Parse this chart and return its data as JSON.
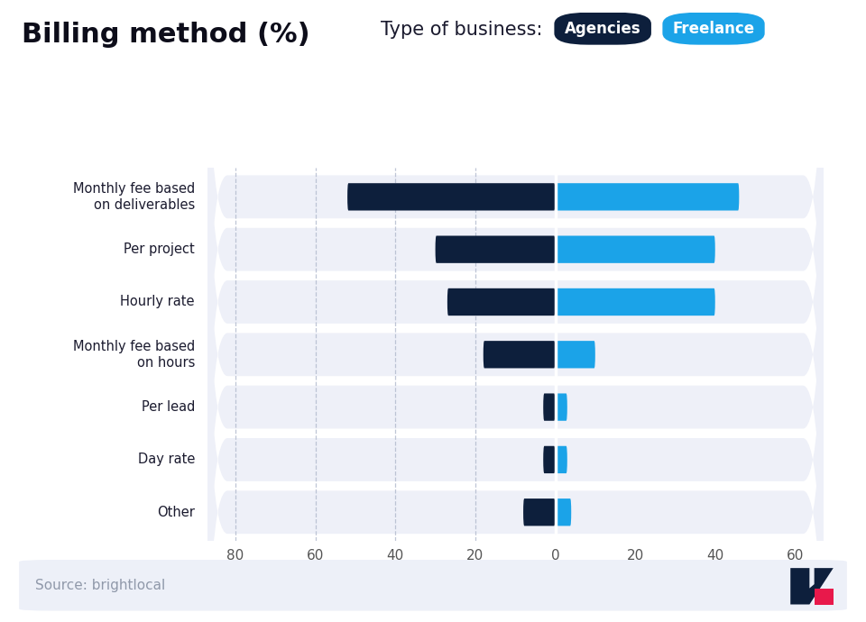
{
  "title": "Billing method (%)",
  "subtitle_label": "Type of business:",
  "legend_items": [
    "Agencies",
    "Freelance"
  ],
  "agency_color": "#0d1f3c",
  "freelance_color": "#1ba3e8",
  "background_color": "#ffffff",
  "row_bg_color": "#eef0f8",
  "categories": [
    "Monthly fee based\non deliverables",
    "Per project",
    "Hourly rate",
    "Monthly fee based\non hours",
    "Per lead",
    "Day rate",
    "Other"
  ],
  "agencies": [
    52,
    30,
    27,
    18,
    3,
    3,
    8
  ],
  "freelancers": [
    46,
    40,
    40,
    10,
    3,
    3,
    4
  ],
  "xlim_left": -88,
  "xlim_right": 68,
  "xticks": [
    -80,
    -60,
    -40,
    -20,
    0,
    20,
    40,
    60
  ],
  "xtick_labels": [
    "80",
    "60",
    "40",
    "20",
    "0",
    "20",
    "40",
    "60"
  ],
  "source_text": "Source: brightlocal",
  "title_fontsize": 22,
  "bar_height": 0.52,
  "accent_color": "#e8194b",
  "grid_color": "#b0b8cc",
  "tick_color": "#555555"
}
